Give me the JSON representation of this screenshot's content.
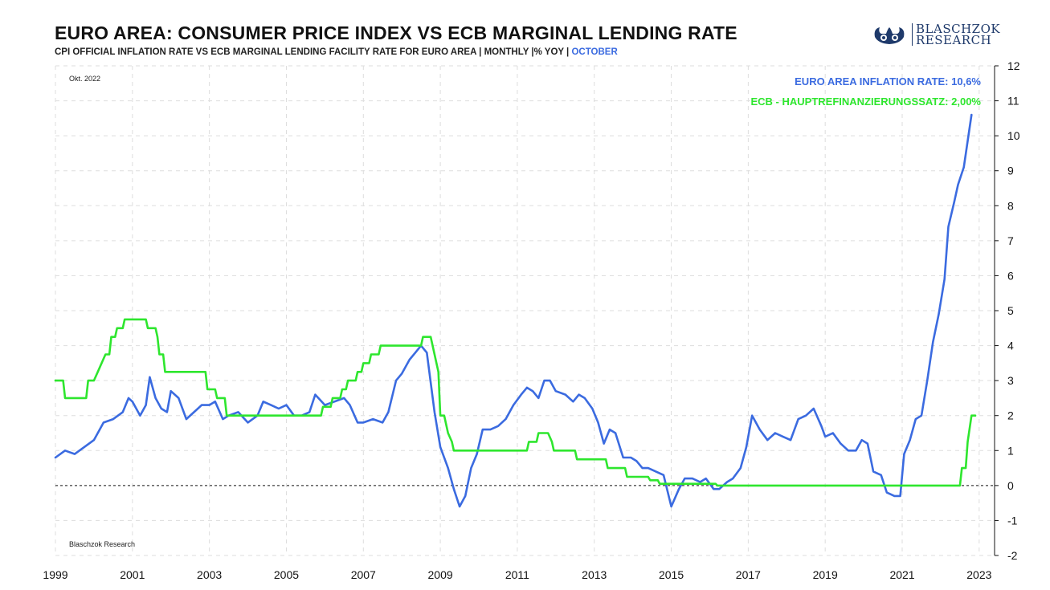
{
  "header": {
    "title": "EURO AREA: CONSUMER PRICE INDEX VS ECB MARGINAL LENDING RATE",
    "subtitle": "CPI OFFICIAL INFLATION RATE VS ECB MARGINAL LENDING FACILITY RATE FOR EURO AREA | MONTHLY |% YOY | ",
    "subtitle_highlight": "OCTOBER"
  },
  "logo": {
    "line1": "BLASCHZOK",
    "line2": "RESEARCH"
  },
  "colors": {
    "inflation": "#3b6be0",
    "rate": "#2ee62e",
    "zero_line": "#111111",
    "grid": "#dddddd"
  },
  "chart_data": {
    "type": "line",
    "date_label": "Okt. 2022",
    "source_label": "Blaschzok Research",
    "x_ticks": [
      "1999",
      "2001",
      "2003",
      "2005",
      "2007",
      "2009",
      "2011",
      "2013",
      "2015",
      "2017",
      "2019",
      "2021",
      "2023"
    ],
    "y_ticks": [
      "-2",
      "-1",
      "0",
      "1",
      "2",
      "3",
      "4",
      "5",
      "6",
      "7",
      "8",
      "9",
      "10",
      "11",
      "12"
    ],
    "xlim": [
      1999.0,
      2023.4
    ],
    "ylim": [
      -2,
      12
    ],
    "legend_placement": "top-right",
    "series": [
      {
        "name": "EURO AREA INFLATION RATE: 10,6%",
        "color": "#3b6be0",
        "points": [
          [
            1999.0,
            0.8
          ],
          [
            1999.25,
            1.0
          ],
          [
            1999.5,
            0.9
          ],
          [
            1999.75,
            1.1
          ],
          [
            2000.0,
            1.3
          ],
          [
            2000.25,
            1.8
          ],
          [
            2000.5,
            1.9
          ],
          [
            2000.75,
            2.1
          ],
          [
            2000.9,
            2.5
          ],
          [
            2001.0,
            2.4
          ],
          [
            2001.2,
            2.0
          ],
          [
            2001.35,
            2.3
          ],
          [
            2001.45,
            3.1
          ],
          [
            2001.6,
            2.5
          ],
          [
            2001.75,
            2.2
          ],
          [
            2001.9,
            2.1
          ],
          [
            2002.0,
            2.7
          ],
          [
            2002.2,
            2.5
          ],
          [
            2002.4,
            1.9
          ],
          [
            2002.6,
            2.1
          ],
          [
            2002.8,
            2.3
          ],
          [
            2003.0,
            2.3
          ],
          [
            2003.15,
            2.4
          ],
          [
            2003.35,
            1.9
          ],
          [
            2003.5,
            2.0
          ],
          [
            2003.75,
            2.1
          ],
          [
            2004.0,
            1.8
          ],
          [
            2004.25,
            2.0
          ],
          [
            2004.4,
            2.4
          ],
          [
            2004.6,
            2.3
          ],
          [
            2004.8,
            2.2
          ],
          [
            2005.0,
            2.3
          ],
          [
            2005.2,
            2.0
          ],
          [
            2005.4,
            2.0
          ],
          [
            2005.6,
            2.1
          ],
          [
            2005.75,
            2.6
          ],
          [
            2006.0,
            2.3
          ],
          [
            2006.25,
            2.4
          ],
          [
            2006.5,
            2.5
          ],
          [
            2006.65,
            2.3
          ],
          [
            2006.85,
            1.8
          ],
          [
            2007.0,
            1.8
          ],
          [
            2007.25,
            1.9
          ],
          [
            2007.5,
            1.8
          ],
          [
            2007.65,
            2.1
          ],
          [
            2007.85,
            3.0
          ],
          [
            2008.0,
            3.2
          ],
          [
            2008.2,
            3.6
          ],
          [
            2008.35,
            3.8
          ],
          [
            2008.5,
            4.0
          ],
          [
            2008.65,
            3.8
          ],
          [
            2008.85,
            2.1
          ],
          [
            2009.0,
            1.1
          ],
          [
            2009.2,
            0.5
          ],
          [
            2009.35,
            -0.1
          ],
          [
            2009.5,
            -0.6
          ],
          [
            2009.65,
            -0.3
          ],
          [
            2009.8,
            0.5
          ],
          [
            2009.95,
            0.9
          ],
          [
            2010.1,
            1.6
          ],
          [
            2010.3,
            1.6
          ],
          [
            2010.5,
            1.7
          ],
          [
            2010.7,
            1.9
          ],
          [
            2010.9,
            2.3
          ],
          [
            2011.1,
            2.6
          ],
          [
            2011.25,
            2.8
          ],
          [
            2011.4,
            2.7
          ],
          [
            2011.55,
            2.5
          ],
          [
            2011.7,
            3.0
          ],
          [
            2011.85,
            3.0
          ],
          [
            2012.0,
            2.7
          ],
          [
            2012.25,
            2.6
          ],
          [
            2012.45,
            2.4
          ],
          [
            2012.6,
            2.6
          ],
          [
            2012.75,
            2.5
          ],
          [
            2012.95,
            2.2
          ],
          [
            2013.1,
            1.8
          ],
          [
            2013.25,
            1.2
          ],
          [
            2013.4,
            1.6
          ],
          [
            2013.55,
            1.5
          ],
          [
            2013.75,
            0.8
          ],
          [
            2013.95,
            0.8
          ],
          [
            2014.1,
            0.7
          ],
          [
            2014.25,
            0.5
          ],
          [
            2014.4,
            0.5
          ],
          [
            2014.6,
            0.4
          ],
          [
            2014.8,
            0.3
          ],
          [
            2015.0,
            -0.6
          ],
          [
            2015.2,
            -0.1
          ],
          [
            2015.35,
            0.2
          ],
          [
            2015.55,
            0.2
          ],
          [
            2015.75,
            0.1
          ],
          [
            2015.9,
            0.2
          ],
          [
            2016.1,
            -0.1
          ],
          [
            2016.25,
            -0.1
          ],
          [
            2016.45,
            0.1
          ],
          [
            2016.6,
            0.2
          ],
          [
            2016.8,
            0.5
          ],
          [
            2016.95,
            1.1
          ],
          [
            2017.1,
            2.0
          ],
          [
            2017.3,
            1.6
          ],
          [
            2017.5,
            1.3
          ],
          [
            2017.7,
            1.5
          ],
          [
            2017.9,
            1.4
          ],
          [
            2018.1,
            1.3
          ],
          [
            2018.3,
            1.9
          ],
          [
            2018.5,
            2.0
          ],
          [
            2018.7,
            2.2
          ],
          [
            2018.9,
            1.7
          ],
          [
            2019.0,
            1.4
          ],
          [
            2019.2,
            1.5
          ],
          [
            2019.4,
            1.2
          ],
          [
            2019.6,
            1.0
          ],
          [
            2019.8,
            1.0
          ],
          [
            2019.95,
            1.3
          ],
          [
            2020.1,
            1.2
          ],
          [
            2020.25,
            0.4
          ],
          [
            2020.45,
            0.3
          ],
          [
            2020.6,
            -0.2
          ],
          [
            2020.8,
            -0.3
          ],
          [
            2020.95,
            -0.3
          ],
          [
            2021.05,
            0.9
          ],
          [
            2021.2,
            1.3
          ],
          [
            2021.35,
            1.9
          ],
          [
            2021.5,
            2.0
          ],
          [
            2021.65,
            3.0
          ],
          [
            2021.8,
            4.1
          ],
          [
            2021.95,
            4.9
          ],
          [
            2022.1,
            5.9
          ],
          [
            2022.2,
            7.4
          ],
          [
            2022.35,
            8.1
          ],
          [
            2022.45,
            8.6
          ],
          [
            2022.6,
            9.1
          ],
          [
            2022.8,
            10.6
          ]
        ]
      },
      {
        "name": "ECB - HAUPTREFINANZIERUNGSSATZ: 2,00%",
        "color": "#2ee62e",
        "points": [
          [
            1999.0,
            3.0
          ],
          [
            1999.2,
            3.0
          ],
          [
            1999.25,
            2.5
          ],
          [
            1999.8,
            2.5
          ],
          [
            1999.85,
            3.0
          ],
          [
            2000.0,
            3.0
          ],
          [
            2000.1,
            3.25
          ],
          [
            2000.2,
            3.5
          ],
          [
            2000.3,
            3.75
          ],
          [
            2000.4,
            3.75
          ],
          [
            2000.45,
            4.25
          ],
          [
            2000.55,
            4.25
          ],
          [
            2000.6,
            4.5
          ],
          [
            2000.75,
            4.5
          ],
          [
            2000.8,
            4.75
          ],
          [
            2001.35,
            4.75
          ],
          [
            2001.4,
            4.5
          ],
          [
            2001.6,
            4.5
          ],
          [
            2001.65,
            4.25
          ],
          [
            2001.7,
            3.75
          ],
          [
            2001.8,
            3.75
          ],
          [
            2001.85,
            3.25
          ],
          [
            2002.9,
            3.25
          ],
          [
            2002.95,
            2.75
          ],
          [
            2003.15,
            2.75
          ],
          [
            2003.2,
            2.5
          ],
          [
            2003.4,
            2.5
          ],
          [
            2003.45,
            2.0
          ],
          [
            2005.9,
            2.0
          ],
          [
            2005.95,
            2.25
          ],
          [
            2006.15,
            2.25
          ],
          [
            2006.2,
            2.5
          ],
          [
            2006.4,
            2.5
          ],
          [
            2006.45,
            2.75
          ],
          [
            2006.55,
            2.75
          ],
          [
            2006.6,
            3.0
          ],
          [
            2006.8,
            3.0
          ],
          [
            2006.85,
            3.25
          ],
          [
            2006.95,
            3.25
          ],
          [
            2007.0,
            3.5
          ],
          [
            2007.15,
            3.5
          ],
          [
            2007.2,
            3.75
          ],
          [
            2007.4,
            3.75
          ],
          [
            2007.45,
            4.0
          ],
          [
            2008.5,
            4.0
          ],
          [
            2008.55,
            4.25
          ],
          [
            2008.75,
            4.25
          ],
          [
            2008.95,
            3.25
          ],
          [
            2009.0,
            2.0
          ],
          [
            2009.1,
            2.0
          ],
          [
            2009.2,
            1.5
          ],
          [
            2009.3,
            1.25
          ],
          [
            2009.35,
            1.0
          ],
          [
            2011.25,
            1.0
          ],
          [
            2011.3,
            1.25
          ],
          [
            2011.5,
            1.25
          ],
          [
            2011.55,
            1.5
          ],
          [
            2011.8,
            1.5
          ],
          [
            2011.9,
            1.25
          ],
          [
            2011.95,
            1.0
          ],
          [
            2012.5,
            1.0
          ],
          [
            2012.55,
            0.75
          ],
          [
            2013.3,
            0.75
          ],
          [
            2013.35,
            0.5
          ],
          [
            2013.8,
            0.5
          ],
          [
            2013.85,
            0.25
          ],
          [
            2014.4,
            0.25
          ],
          [
            2014.45,
            0.15
          ],
          [
            2014.65,
            0.15
          ],
          [
            2014.7,
            0.05
          ],
          [
            2016.15,
            0.05
          ],
          [
            2016.2,
            0.0
          ],
          [
            2022.5,
            0.0
          ],
          [
            2022.55,
            0.5
          ],
          [
            2022.65,
            0.5
          ],
          [
            2022.7,
            1.25
          ],
          [
            2022.8,
            2.0
          ],
          [
            2022.9,
            2.0
          ]
        ]
      }
    ]
  }
}
